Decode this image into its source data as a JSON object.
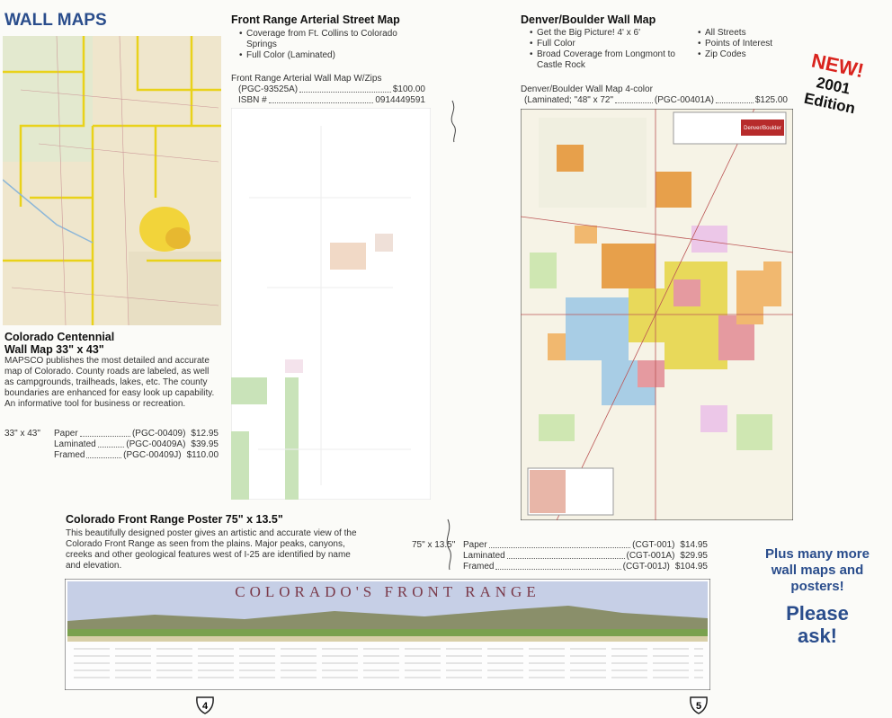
{
  "header": {
    "title": "WALL MAPS"
  },
  "centennial": {
    "title_line1": "Colorado Centennial",
    "title_line2": "Wall Map 33\" x 43\"",
    "description": "MAPSCO publishes the most detailed and accurate map of Colorado. County roads are labeled, as well as campgrounds, trailheads, lakes, etc. The county boundaries are enhanced for easy look up capability. An informative tool for business or recreation.",
    "size": "33\" x 43\"",
    "rows": [
      {
        "label": "Paper",
        "code": "(PGC-00409)",
        "price": "$12.95"
      },
      {
        "label": "Laminated",
        "code": "(PGC-00409A)",
        "price": "$39.95"
      },
      {
        "label": "Framed",
        "code": "(PGC-00409J)",
        "price": "$110.00"
      }
    ]
  },
  "arterial": {
    "title": "Front Range Arterial Street Map",
    "bullets": [
      "Coverage from Ft. Collins to Colorado Springs",
      "Full Color (Laminated)"
    ],
    "product": "Front Range Arterial Wall Map W/Zips",
    "code": "(PGC-93525A)",
    "price": "$100.00",
    "isbn_label": "ISBN #",
    "isbn": "0914449591"
  },
  "denver": {
    "title": "Denver/Boulder Wall Map",
    "bullets_left": [
      "Get the Big Picture! 4' x 6'",
      "Full Color",
      "Broad Coverage from Longmont to Castle Rock"
    ],
    "bullets_right": [
      "All Streets",
      "Points of Interest",
      "Zip Codes"
    ],
    "product": "Denver/Boulder Wall Map 4-color",
    "spec": "(Laminated; \"48\" x 72\"",
    "code": "(PGC-00401A)",
    "price": "$125.00",
    "map_label": "Denver/Boulder"
  },
  "badge": {
    "new": "NEW!",
    "year": "2001",
    "edition": "Edition"
  },
  "poster": {
    "title": "Colorado Front Range Poster 75\" x 13.5\"",
    "description": "This beautifully designed poster gives an artistic and accurate view of the Colorado Front Range as seen from the plains. Major peaks, canyons, creeks and other geological features west of I-25 are identified by name and elevation.",
    "size": "75\" x 13.5\"",
    "rows": [
      {
        "label": "Paper",
        "code": "(CGT-001)",
        "price": "$14.95"
      },
      {
        "label": "Laminated",
        "code": "(CGT-001A)",
        "price": "$29.95"
      },
      {
        "label": "Framed",
        "code": "(CGT-001J)",
        "price": "$104.95"
      }
    ],
    "banner": "COLORADO'S FRONT RANGE"
  },
  "more": {
    "line1": "Plus many more wall maps and posters!",
    "line2": "Please ask!"
  },
  "pages": {
    "left": "4",
    "right": "5"
  }
}
